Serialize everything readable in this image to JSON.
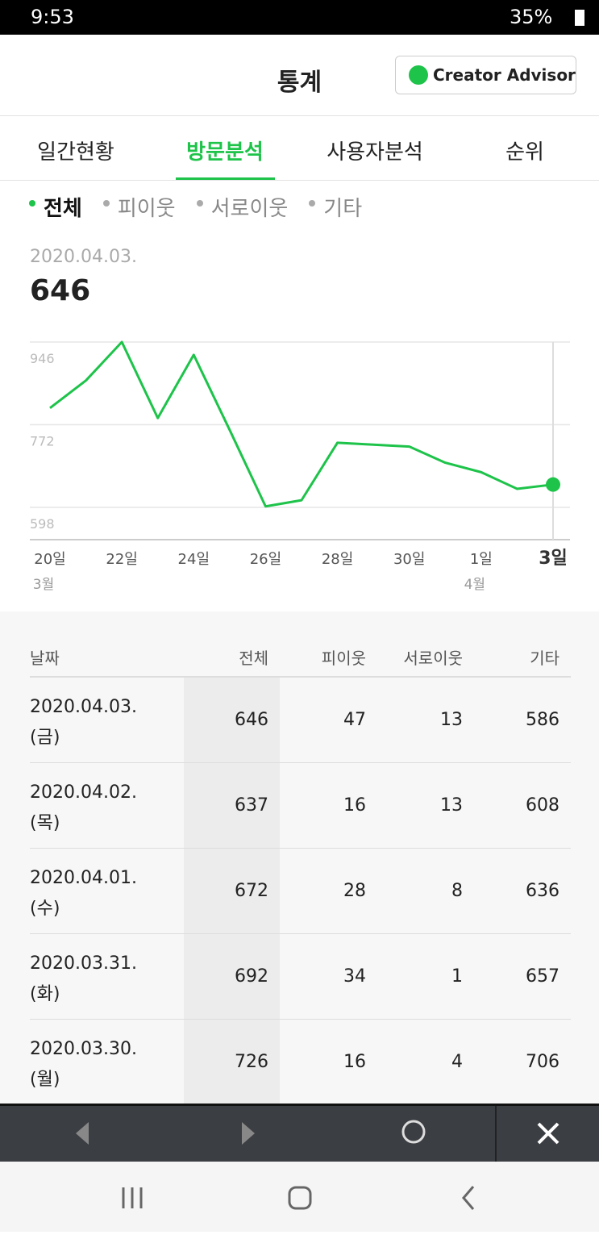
{
  "status_bar": {
    "time": "9:53",
    "battery": "35%"
  },
  "header": {
    "title": "통계",
    "button": "Creator Advisor"
  },
  "tabs": [
    "일간현황",
    "방문분석",
    "사용자분석",
    "순위"
  ],
  "filters": [
    "전체",
    "피이웃",
    "서로이웃",
    "기타"
  ],
  "selected": {
    "date": "2020.04.03.",
    "value": 646
  },
  "chart_data": {
    "type": "line",
    "categories": [
      "20일",
      null,
      "22일",
      null,
      "24일",
      null,
      "26일",
      null,
      "28일",
      null,
      "30일",
      null,
      "1일",
      null,
      "3일"
    ],
    "category_months": [
      "3월",
      null,
      null,
      null,
      null,
      null,
      null,
      null,
      null,
      null,
      null,
      null,
      "4월",
      null,
      null
    ],
    "series": [
      {
        "name": "전체",
        "color": "#1ec34a",
        "values": [
          807,
          865,
          946,
          786,
          919,
          761,
          600,
          613,
          734,
          730,
          726,
          692,
          672,
          637,
          646
        ]
      }
    ],
    "ylim": [
      530,
      946
    ],
    "yticks": [
      946,
      772,
      598
    ],
    "grid": true
  },
  "table": {
    "headers": [
      "날짜",
      "전체",
      "피이웃",
      "서로이웃",
      "기타"
    ],
    "rows": [
      [
        "2020.04.03.",
        "(금)",
        646,
        47,
        13,
        586
      ],
      [
        "2020.04.02.",
        "(목)",
        637,
        16,
        13,
        608
      ],
      [
        "2020.04.01.",
        "(수)",
        672,
        28,
        8,
        636
      ],
      [
        "2020.03.31.",
        "(화)",
        692,
        34,
        1,
        657
      ],
      [
        "2020.03.30.",
        "(월)",
        726,
        16,
        4,
        706
      ]
    ]
  }
}
